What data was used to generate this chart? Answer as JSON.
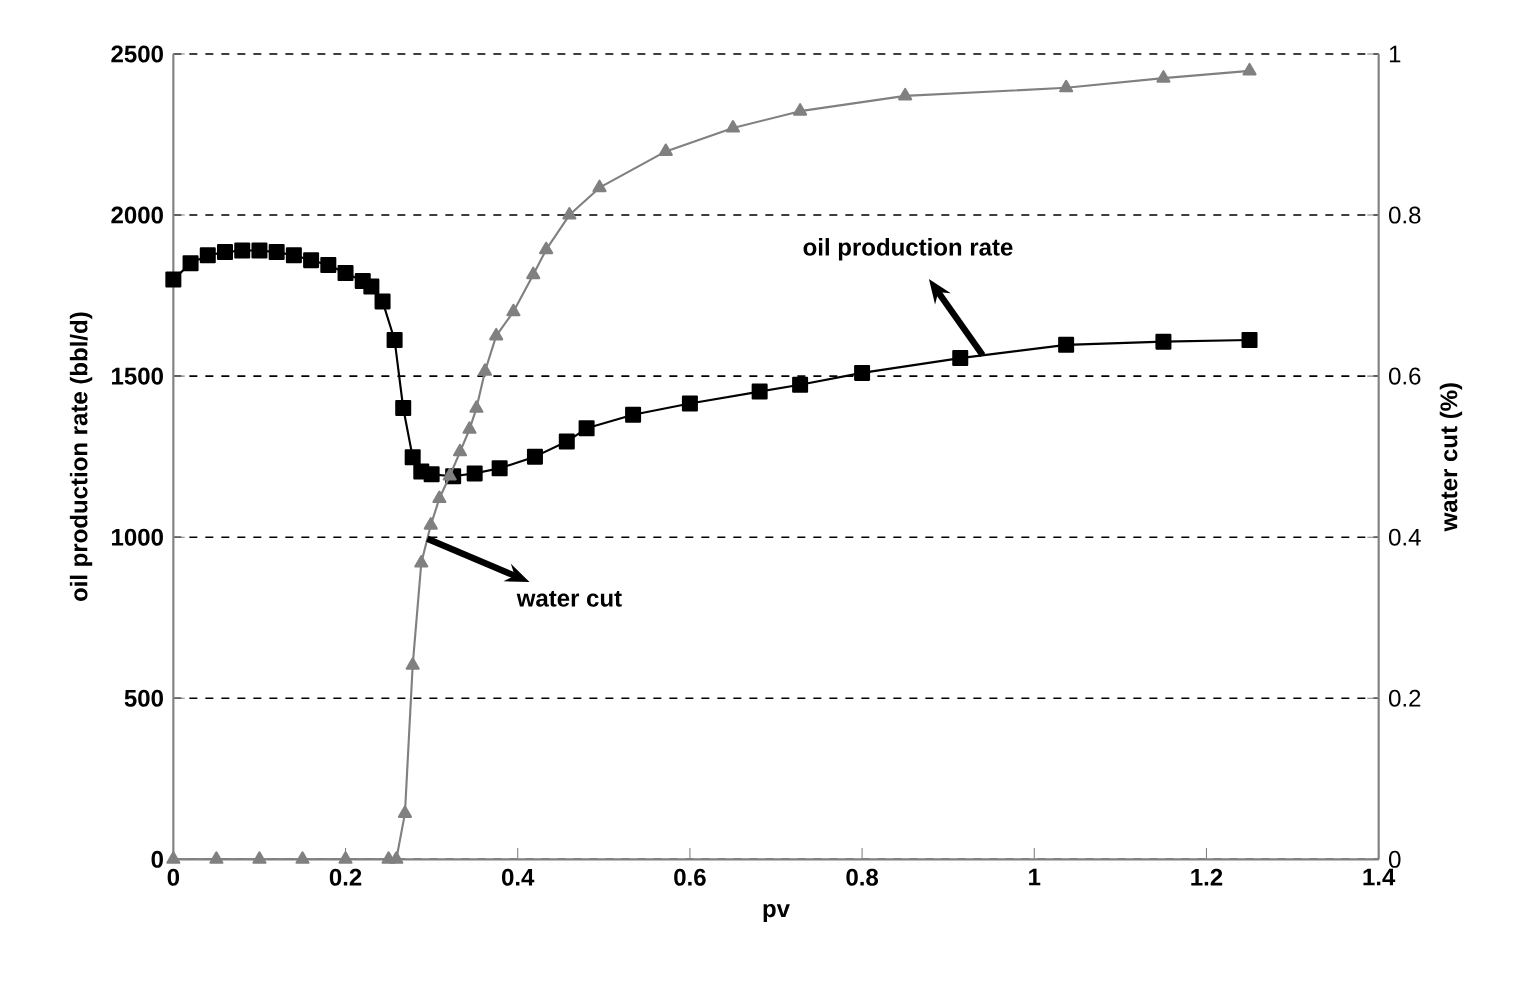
{
  "chart_data": {
    "type": "line",
    "xlabel": "pv",
    "ylabel": "oil production rate (bbl/d)",
    "y2label": "water cut (%)",
    "xlim": [
      0,
      1.4
    ],
    "xticks": [
      0,
      0.2,
      0.4,
      0.6,
      0.8,
      1,
      1.2,
      1.4
    ],
    "ylim": [
      0,
      2500
    ],
    "yticks": [
      0,
      500,
      1000,
      1500,
      2000,
      2500
    ],
    "y2lim": [
      0,
      1
    ],
    "y2ticks": [
      0,
      0.2,
      0.4,
      0.6,
      0.8,
      1
    ],
    "grid": "y",
    "series": [
      {
        "color": "#000000",
        "marker": "square",
        "x": [
          0,
          0.02,
          0.04,
          0.06,
          0.08,
          0.1,
          0.12,
          0.14,
          0.16,
          0.18,
          0.2,
          0.22,
          0.23,
          0.243,
          0.257,
          0.267,
          0.278,
          0.288,
          0.3,
          0.325,
          0.35,
          0.379,
          0.42,
          0.457,
          0.48,
          0.534,
          0.6,
          0.681,
          0.728,
          0.8,
          0.914,
          1.037,
          1.15,
          1.25
        ],
        "values": [
          1800,
          1850,
          1875,
          1885,
          1890,
          1890,
          1885,
          1875,
          1860,
          1845,
          1820,
          1795,
          1778,
          1732,
          1612,
          1401,
          1248,
          1204,
          1195,
          1189,
          1198,
          1214,
          1250,
          1297,
          1338,
          1380,
          1415,
          1452,
          1473,
          1510,
          1556,
          1597,
          1607,
          1612
        ]
      },
      {
        "color": "#808080",
        "marker": "triangle",
        "axis": "y2",
        "x": [
          0,
          0.05,
          0.1,
          0.15,
          0.2,
          0.25,
          0.259,
          0.269,
          0.278,
          0.288,
          0.299,
          0.309,
          0.321,
          0.333,
          0.344,
          0.352,
          0.362,
          0.375,
          0.395,
          0.418,
          0.433,
          0.46,
          0.495,
          0.572,
          0.65,
          0.728,
          0.85,
          1.037,
          1.15,
          1.25
        ],
        "values": [
          0,
          0,
          0,
          0,
          0,
          0,
          0,
          0.057,
          0.241,
          0.368,
          0.415,
          0.448,
          0.476,
          0.506,
          0.534,
          0.56,
          0.606,
          0.65,
          0.68,
          0.726,
          0.757,
          0.8,
          0.834,
          0.879,
          0.908,
          0.929,
          0.948,
          0.958,
          0.97,
          0.979
        ]
      }
    ],
    "annotations": [
      {
        "text": "oil production rate",
        "x": 0.94,
        "y": 1565
      },
      {
        "text": "water cut",
        "x": 0.295,
        "y": 995
      }
    ]
  }
}
